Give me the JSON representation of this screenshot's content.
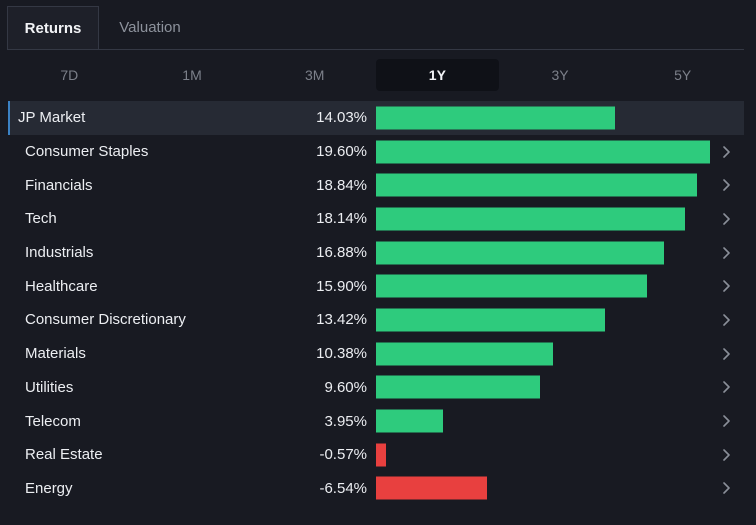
{
  "tabs": [
    {
      "label": "Returns",
      "active": true
    },
    {
      "label": "Valuation",
      "active": false
    }
  ],
  "periods": [
    {
      "label": "7D",
      "active": false
    },
    {
      "label": "1M",
      "active": false
    },
    {
      "label": "3M",
      "active": false
    },
    {
      "label": "1Y",
      "active": true
    },
    {
      "label": "3Y",
      "active": false
    },
    {
      "label": "5Y",
      "active": false
    }
  ],
  "colors": {
    "positive": "#2ecb7d",
    "negative": "#e8403f",
    "chevron": "#8a8f99"
  },
  "chart_data": {
    "type": "bar",
    "orientation": "horizontal",
    "scale_max": 19.6,
    "categories": [
      "JP Market",
      "Consumer Staples",
      "Financials",
      "Tech",
      "Industrials",
      "Healthcare",
      "Consumer Discretionary",
      "Materials",
      "Utilities",
      "Telecom",
      "Real Estate",
      "Energy"
    ],
    "values": [
      14.03,
      19.6,
      18.84,
      18.14,
      16.88,
      15.9,
      13.42,
      10.38,
      9.6,
      3.95,
      -0.57,
      -6.54
    ],
    "labels": [
      "14.03%",
      "19.60%",
      "18.84%",
      "18.14%",
      "16.88%",
      "15.90%",
      "13.42%",
      "10.38%",
      "9.60%",
      "3.95%",
      "-0.57%",
      "-6.54%"
    ]
  }
}
